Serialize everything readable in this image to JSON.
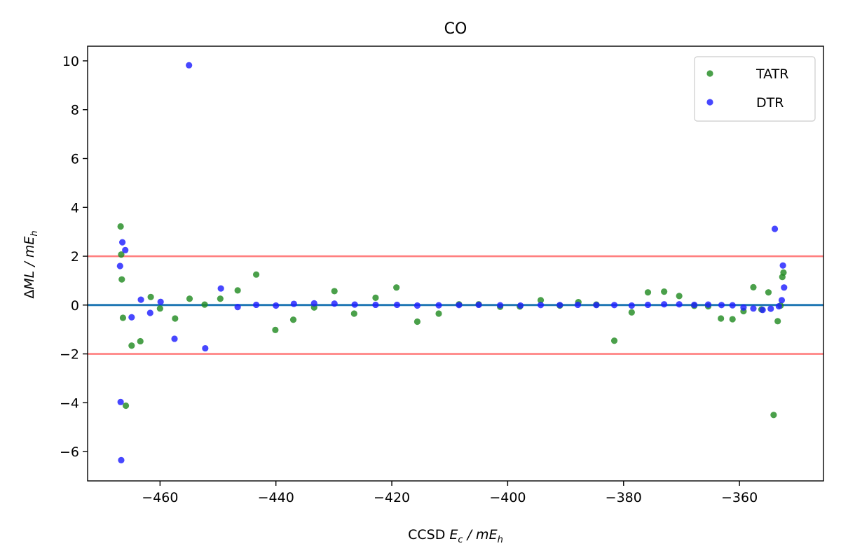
{
  "chart_data": {
    "type": "scatter",
    "title": "CO",
    "xlabel": {
      "prefix": "CCSD ",
      "var": "E",
      "sub": "c",
      "mid": " / m",
      "unit": "E",
      "unit_sub": "h"
    },
    "ylabel": {
      "prefix": "Δ",
      "var": "ML",
      "mid": " / m",
      "unit": "E",
      "unit_sub": "h"
    },
    "xlim": [
      -472.5,
      -345.5
    ],
    "ylim": [
      -7.2,
      10.6
    ],
    "xticks": [
      -460,
      -440,
      -420,
      -400,
      -380,
      -360
    ],
    "yticks": [
      -6,
      -4,
      -2,
      0,
      2,
      4,
      6,
      8,
      10
    ],
    "xtick_labels": [
      "−460",
      "−440",
      "−420",
      "−400",
      "−380",
      "−360"
    ],
    "ytick_labels": [
      "−6",
      "−4",
      "−2",
      "0",
      "2",
      "4",
      "6",
      "8",
      "10"
    ],
    "grid": false,
    "legend_position": "top-right",
    "reference_lines": [
      {
        "y": 0,
        "color": "#1f77b4"
      },
      {
        "y": 2,
        "color": "#ff7f7f"
      },
      {
        "y": -2,
        "color": "#ff7f7f"
      }
    ],
    "series": [
      {
        "name": "TATR",
        "color": "#2ca02c",
        "marker_color": "#228b22",
        "x": [
          -466.8,
          -466.7,
          -466.6,
          -466.4,
          -465.9,
          -464.9,
          -463.4,
          -461.6,
          -460.0,
          -457.4,
          -454.9,
          -452.3,
          -449.6,
          -446.6,
          -443.4,
          -440.1,
          -437.0,
          -433.4,
          -429.9,
          -426.5,
          -422.8,
          -419.2,
          -415.6,
          -411.9,
          -408.4,
          -405.0,
          -401.3,
          -397.9,
          -394.3,
          -391.0,
          -387.8,
          -384.7,
          -381.6,
          -378.6,
          -375.8,
          -373.0,
          -370.4,
          -367.8,
          -365.4,
          -363.2,
          -361.2,
          -359.3,
          -357.6,
          -356.2,
          -355.0,
          -354.1,
          -353.4,
          -352.9,
          -352.6,
          -352.4
        ],
        "y": [
          3.22,
          2.07,
          1.05,
          -0.52,
          -4.12,
          -1.66,
          -1.48,
          0.33,
          -0.14,
          -0.55,
          0.26,
          0.02,
          0.26,
          0.6,
          1.25,
          -1.02,
          -0.6,
          -0.1,
          0.57,
          -0.35,
          0.3,
          0.72,
          -0.68,
          -0.35,
          0.03,
          0.03,
          -0.07,
          -0.06,
          0.2,
          -0.02,
          0.12,
          0.02,
          -1.46,
          -0.3,
          0.52,
          0.55,
          0.37,
          -0.03,
          -0.05,
          -0.55,
          -0.58,
          -0.25,
          0.73,
          -0.18,
          0.52,
          -4.5,
          -0.66,
          -0.02,
          1.15,
          1.33
        ]
      },
      {
        "name": "DTR",
        "color": "#0000ff",
        "marker_color": "#1f1fff",
        "x": [
          -466.9,
          -466.8,
          -466.7,
          -466.5,
          -466.0,
          -464.9,
          -463.3,
          -461.7,
          -459.9,
          -457.5,
          -455.0,
          -452.2,
          -449.5,
          -446.6,
          -443.4,
          -440.0,
          -436.9,
          -433.4,
          -429.9,
          -426.4,
          -422.8,
          -419.1,
          -415.6,
          -411.9,
          -408.4,
          -405.0,
          -401.3,
          -397.8,
          -394.3,
          -391.0,
          -387.9,
          -384.7,
          -381.6,
          -378.6,
          -375.8,
          -373.0,
          -370.4,
          -367.8,
          -365.4,
          -363.1,
          -361.2,
          -359.3,
          -357.6,
          -356.0,
          -354.6,
          -353.9,
          -353.2,
          -352.7,
          -352.5,
          -352.3
        ],
        "y": [
          1.6,
          -3.97,
          -6.35,
          2.57,
          2.25,
          -0.5,
          0.22,
          -0.32,
          0.13,
          -1.38,
          9.82,
          -1.77,
          0.68,
          -0.08,
          0.01,
          -0.02,
          0.05,
          0.07,
          0.06,
          0.02,
          0.01,
          0.01,
          -0.02,
          -0.01,
          0.0,
          0.01,
          -0.01,
          -0.02,
          0.0,
          0.0,
          0.01,
          0.0,
          0.0,
          -0.02,
          0.01,
          0.03,
          0.03,
          0.01,
          0.02,
          0.0,
          -0.01,
          -0.1,
          -0.14,
          -0.2,
          -0.15,
          3.12,
          -0.05,
          0.2,
          1.62,
          0.72
        ]
      }
    ]
  }
}
